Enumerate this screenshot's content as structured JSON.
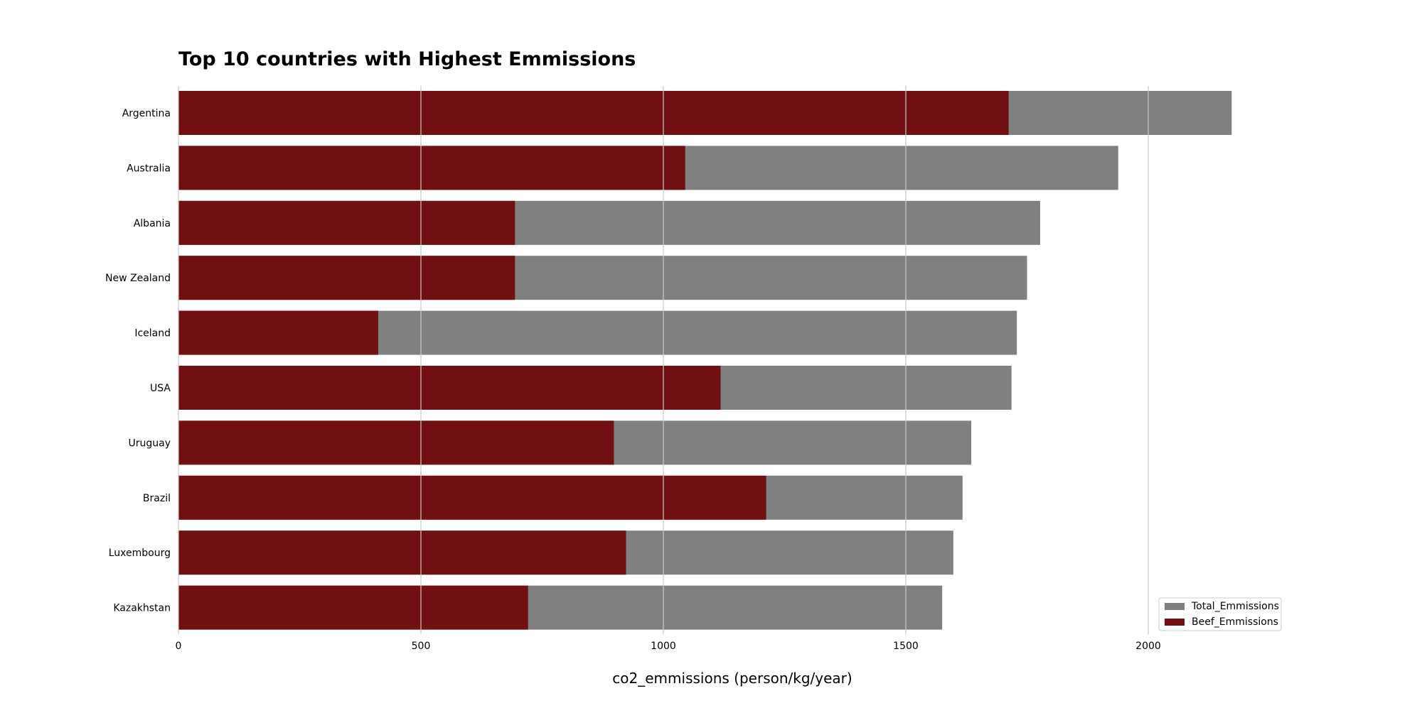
{
  "chart_data": {
    "type": "bar",
    "orientation": "horizontal",
    "stacking": "overlay",
    "title": "Top 10 countries with Highest Emmissions",
    "xlabel": "co2_emmissions (person/kg/year)",
    "ylabel": "",
    "xlim": [
      0,
      2260
    ],
    "xticks": [
      0,
      500,
      1000,
      1500,
      2000
    ],
    "grid": "x",
    "legend_position": "lower-right",
    "categories": [
      "Argentina",
      "Australia",
      "Albania",
      "New Zealand",
      "Iceland",
      "USA",
      "Uruguay",
      "Brazil",
      "Luxembourg",
      "Kazakhstan"
    ],
    "series": [
      {
        "name": "Total_Emmissions",
        "color": "#808080",
        "values": [
          2172,
          1938,
          1777,
          1750,
          1729,
          1718,
          1635,
          1617,
          1598,
          1575
        ]
      },
      {
        "name": "Beef_Emmissions",
        "color": "#701012",
        "values": [
          1712,
          1045,
          694,
          694,
          412,
          1118,
          898,
          1212,
          923,
          721
        ]
      }
    ]
  }
}
